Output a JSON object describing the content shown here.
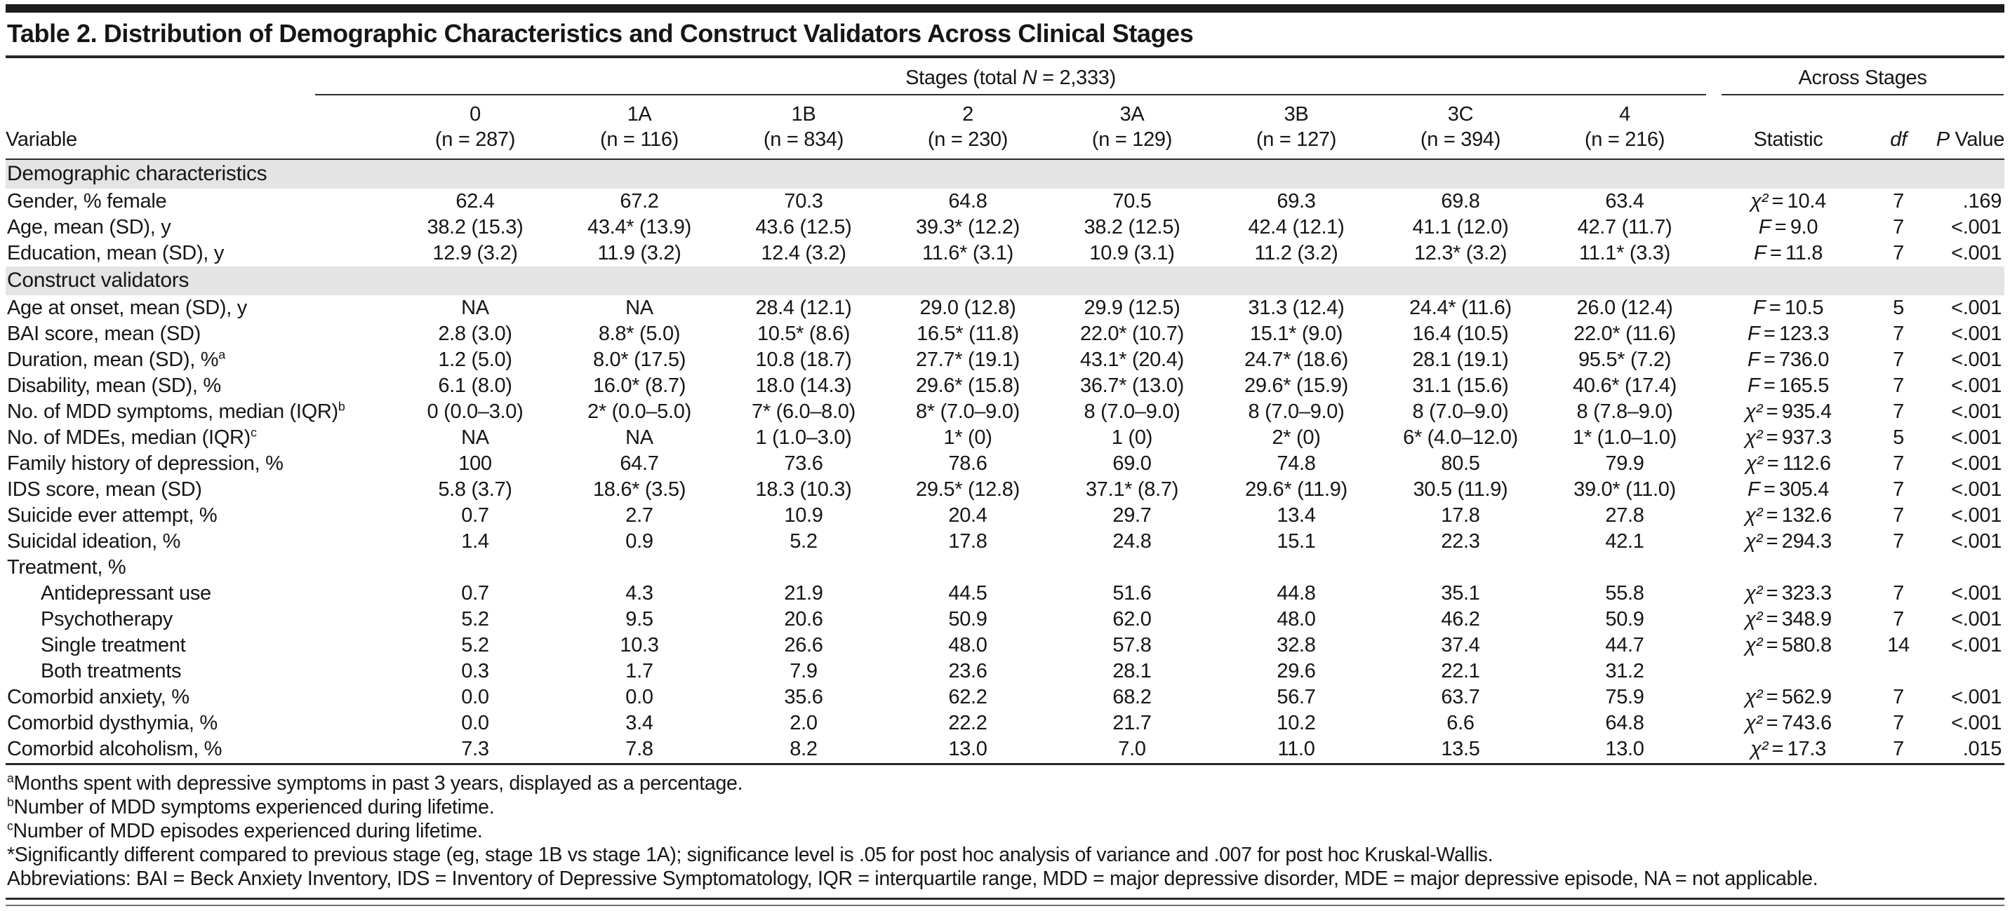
{
  "title": "Table 2. Distribution of Demographic Characteristics and Construct Validators Across Clinical Stages",
  "header": {
    "stages_group_pre": "Stages (total ",
    "stages_group_n": "N",
    "stages_group_post": " = 2,333)",
    "across_group": "Across Stages",
    "variable": "Variable",
    "stage_columns": [
      {
        "label": "0",
        "n": "(n = 287)"
      },
      {
        "label": "1A",
        "n": "(n = 116)"
      },
      {
        "label": "1B",
        "n": "(n = 834)"
      },
      {
        "label": "2",
        "n": "(n = 230)"
      },
      {
        "label": "3A",
        "n": "(n = 129)"
      },
      {
        "label": "3B",
        "n": "(n = 127)"
      },
      {
        "label": "3C",
        "n": "(n = 394)"
      },
      {
        "label": "4",
        "n": "(n = 216)"
      }
    ],
    "statistic": "Statistic",
    "df": "df",
    "p_italic": "P",
    "p_rest": " Value"
  },
  "sections": [
    {
      "label": "Demographic characteristics",
      "rows": [
        {
          "label": "Gender, % female",
          "sup": "",
          "indent": false,
          "values": [
            "62.4",
            "67.2",
            "70.3",
            "64.8",
            "70.5",
            "69.3",
            "69.8",
            "63.4"
          ],
          "stat": "χ² = 10.4",
          "df": "7",
          "p": ".169"
        },
        {
          "label": "Age, mean (SD), y",
          "sup": "",
          "indent": false,
          "values": [
            "38.2 (15.3)",
            "43.4* (13.9)",
            "43.6 (12.5)",
            "39.3* (12.2)",
            "38.2 (12.5)",
            "42.4 (12.1)",
            "41.1 (12.0)",
            "42.7 (11.7)"
          ],
          "stat": "F = 9.0",
          "df": "7",
          "p": "<.001"
        },
        {
          "label": "Education, mean (SD), y",
          "sup": "",
          "indent": false,
          "values": [
            "12.9 (3.2)",
            "11.9 (3.2)",
            "12.4 (3.2)",
            "11.6* (3.1)",
            "10.9 (3.1)",
            "11.2 (3.2)",
            "12.3* (3.2)",
            "11.1* (3.3)"
          ],
          "stat": "F = 11.8",
          "df": "7",
          "p": "<.001"
        }
      ]
    },
    {
      "label": "Construct validators",
      "rows": [
        {
          "label": "Age at onset, mean (SD), y",
          "sup": "",
          "indent": false,
          "values": [
            "NA",
            "NA",
            "28.4 (12.1)",
            "29.0 (12.8)",
            "29.9 (12.5)",
            "31.3 (12.4)",
            "24.4* (11.6)",
            "26.0 (12.4)"
          ],
          "stat": "F = 10.5",
          "df": "5",
          "p": "<.001"
        },
        {
          "label": "BAI score, mean (SD)",
          "sup": "",
          "indent": false,
          "values": [
            "2.8 (3.0)",
            "8.8* (5.0)",
            "10.5* (8.6)",
            "16.5* (11.8)",
            "22.0* (10.7)",
            "15.1* (9.0)",
            "16.4 (10.5)",
            "22.0* (11.6)"
          ],
          "stat": "F = 123.3",
          "df": "7",
          "p": "<.001"
        },
        {
          "label": "Duration, mean (SD), %",
          "sup": "a",
          "indent": false,
          "values": [
            "1.2 (5.0)",
            "8.0* (17.5)",
            "10.8 (18.7)",
            "27.7* (19.1)",
            "43.1* (20.4)",
            "24.7* (18.6)",
            "28.1 (19.1)",
            "95.5* (7.2)"
          ],
          "stat": "F = 736.0",
          "df": "7",
          "p": "<.001"
        },
        {
          "label": "Disability, mean (SD), %",
          "sup": "",
          "indent": false,
          "values": [
            "6.1 (8.0)",
            "16.0* (8.7)",
            "18.0 (14.3)",
            "29.6* (15.8)",
            "36.7* (13.0)",
            "29.6* (15.9)",
            "31.1 (15.6)",
            "40.6* (17.4)"
          ],
          "stat": "F = 165.5",
          "df": "7",
          "p": "<.001"
        },
        {
          "label": "No. of MDD symptoms, median (IQR)",
          "sup": "b",
          "indent": false,
          "values": [
            "0 (0.0–3.0)",
            "2* (0.0–5.0)",
            "7* (6.0–8.0)",
            "8* (7.0–9.0)",
            "8 (7.0–9.0)",
            "8 (7.0–9.0)",
            "8 (7.0–9.0)",
            "8 (7.8–9.0)"
          ],
          "stat": "χ² = 935.4",
          "df": "7",
          "p": "<.001"
        },
        {
          "label": "No. of MDEs, median (IQR)",
          "sup": "c",
          "indent": false,
          "values": [
            "NA",
            "NA",
            "1 (1.0–3.0)",
            "1* (0)",
            "1 (0)",
            "2* (0)",
            "6* (4.0–12.0)",
            "1* (1.0–1.0)"
          ],
          "stat": "χ² = 937.3",
          "df": "5",
          "p": "<.001"
        },
        {
          "label": "Family history of depression, %",
          "sup": "",
          "indent": false,
          "values": [
            "100",
            "64.7",
            "73.6",
            "78.6",
            "69.0",
            "74.8",
            "80.5",
            "79.9"
          ],
          "stat": "χ² = 112.6",
          "df": "7",
          "p": "<.001"
        },
        {
          "label": "IDS score, mean (SD)",
          "sup": "",
          "indent": false,
          "values": [
            "5.8 (3.7)",
            "18.6* (3.5)",
            "18.3 (10.3)",
            "29.5* (12.8)",
            "37.1* (8.7)",
            "29.6* (11.9)",
            "30.5 (11.9)",
            "39.0* (11.0)"
          ],
          "stat": "F = 305.4",
          "df": "7",
          "p": "<.001"
        },
        {
          "label": "Suicide ever attempt, %",
          "sup": "",
          "indent": false,
          "values": [
            "0.7",
            "2.7",
            "10.9",
            "20.4",
            "29.7",
            "13.4",
            "17.8",
            "27.8"
          ],
          "stat": "χ² = 132.6",
          "df": "7",
          "p": "<.001"
        },
        {
          "label": "Suicidal ideation, %",
          "sup": "",
          "indent": false,
          "values": [
            "1.4",
            "0.9",
            "5.2",
            "17.8",
            "24.8",
            "15.1",
            "22.3",
            "42.1"
          ],
          "stat": "χ² = 294.3",
          "df": "7",
          "p": "<.001"
        },
        {
          "label": "Treatment, %",
          "sup": "",
          "indent": false,
          "values": [
            "",
            "",
            "",
            "",
            "",
            "",
            "",
            ""
          ],
          "stat": "",
          "df": "",
          "p": ""
        },
        {
          "label": "Antidepressant use",
          "sup": "",
          "indent": true,
          "values": [
            "0.7",
            "4.3",
            "21.9",
            "44.5",
            "51.6",
            "44.8",
            "35.1",
            "55.8"
          ],
          "stat": "χ² = 323.3",
          "df": "7",
          "p": "<.001"
        },
        {
          "label": "Psychotherapy",
          "sup": "",
          "indent": true,
          "values": [
            "5.2",
            "9.5",
            "20.6",
            "50.9",
            "62.0",
            "48.0",
            "46.2",
            "50.9"
          ],
          "stat": "χ² = 348.9",
          "df": "7",
          "p": "<.001"
        },
        {
          "label": "Single treatment",
          "sup": "",
          "indent": true,
          "values": [
            "5.2",
            "10.3",
            "26.6",
            "48.0",
            "57.8",
            "32.8",
            "37.4",
            "44.7"
          ],
          "stat": "χ² = 580.8",
          "df": "14",
          "p": "<.001"
        },
        {
          "label": "Both treatments",
          "sup": "",
          "indent": true,
          "values": [
            "0.3",
            "1.7",
            "7.9",
            "23.6",
            "28.1",
            "29.6",
            "22.1",
            "31.2"
          ],
          "stat": "",
          "df": "",
          "p": ""
        },
        {
          "label": "Comorbid anxiety, %",
          "sup": "",
          "indent": false,
          "values": [
            "0.0",
            "0.0",
            "35.6",
            "62.2",
            "68.2",
            "56.7",
            "63.7",
            "75.9"
          ],
          "stat": "χ² = 562.9",
          "df": "7",
          "p": "<.001"
        },
        {
          "label": "Comorbid dysthymia, %",
          "sup": "",
          "indent": false,
          "values": [
            "0.0",
            "3.4",
            "2.0",
            "22.2",
            "21.7",
            "10.2",
            "6.6",
            "64.8"
          ],
          "stat": "χ² = 743.6",
          "df": "7",
          "p": "<.001"
        },
        {
          "label": "Comorbid alcoholism, %",
          "sup": "",
          "indent": false,
          "values": [
            "7.3",
            "7.8",
            "8.2",
            "13.0",
            "7.0",
            "11.0",
            "13.5",
            "13.0"
          ],
          "stat": "χ² = 17.3",
          "df": "7",
          "p": ".015"
        }
      ]
    }
  ],
  "footnotes": [
    {
      "marker": "a",
      "text": "Months spent with depressive symptoms in past 3 years, displayed as a percentage."
    },
    {
      "marker": "b",
      "text": "Number of MDD symptoms experienced during lifetime."
    },
    {
      "marker": "c",
      "text": "Number of MDD episodes experienced during lifetime."
    },
    {
      "marker": "",
      "text": "*Significantly different compared to previous stage (eg, stage 1B vs stage 1A); significance level is .05 for post hoc analysis of variance and .007 for post hoc Kruskal-Wallis."
    },
    {
      "marker": "",
      "text": "Abbreviations: BAI = Beck Anxiety Inventory, IDS = Inventory of Depressive Symptomatology, IQR = interquartile range, MDD = major depressive disorder, MDE = major depressive episode, NA = not applicable."
    }
  ]
}
